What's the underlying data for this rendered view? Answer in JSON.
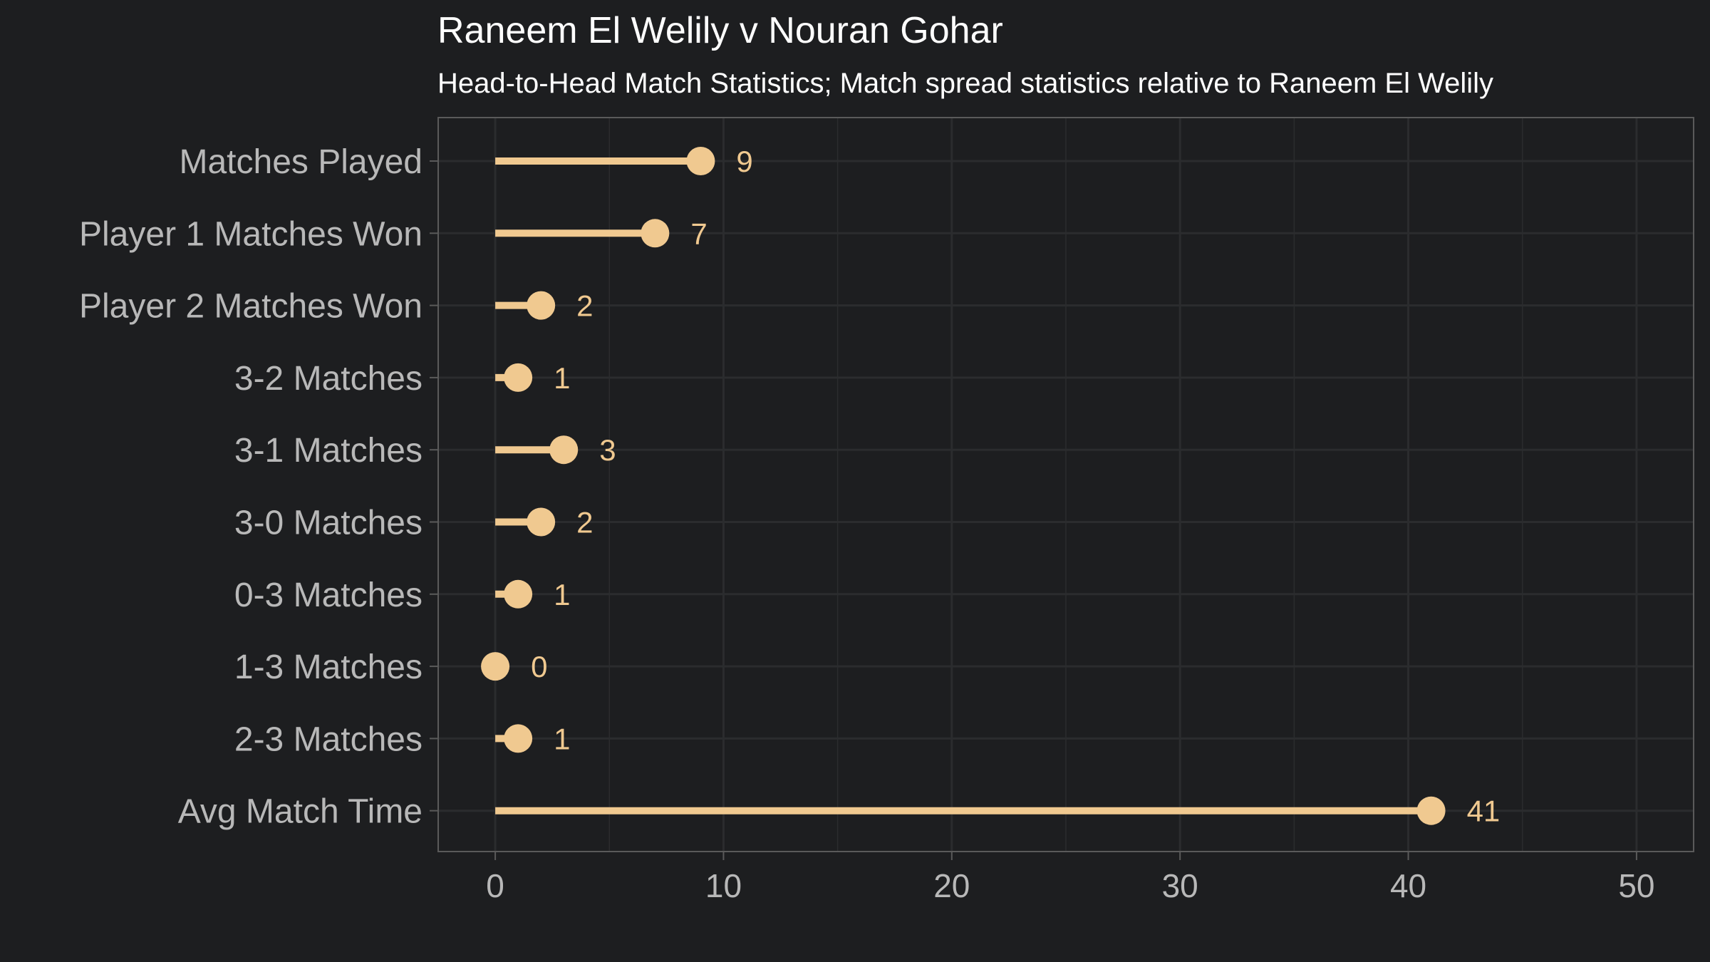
{
  "chart_data": {
    "type": "lollipop",
    "orientation": "horizontal",
    "title": "Raneem El Welily v Nouran Gohar",
    "subtitle": "Head-to-Head Match Statistics; Match spread statistics relative to Raneem El Welily",
    "categories": [
      "Matches Played",
      "Player 1 Matches Won",
      "Player 2 Matches Won",
      "3-2 Matches",
      "3-1 Matches",
      "3-0 Matches",
      "0-3 Matches",
      "1-3 Matches",
      "2-3 Matches",
      "Avg Match Time"
    ],
    "values": [
      9,
      7,
      2,
      1,
      3,
      2,
      1,
      0,
      1,
      41
    ],
    "xlim": [
      -2.5,
      52.5
    ],
    "xticks": [
      0,
      10,
      20,
      30,
      40,
      50
    ],
    "xlabel": "",
    "ylabel": "",
    "grid": true,
    "legend": "none",
    "colors": {
      "background": "#1d1e20",
      "mark": "#f0c990",
      "grid": "#2b2c2e",
      "frame": "#5a5a5a",
      "text": "#b8b8b8",
      "title": "#ffffff"
    }
  }
}
